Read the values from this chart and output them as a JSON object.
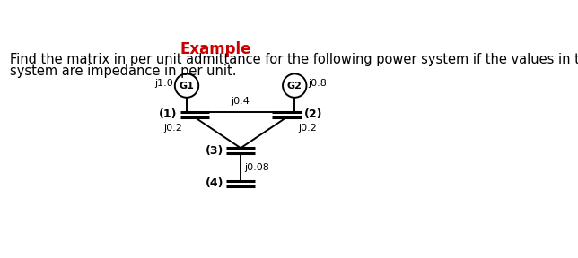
{
  "title": "Example",
  "title_color": "#cc0000",
  "title_fontsize": 12,
  "body_text_line1": "Find the matrix in per unit admittance for the following power system if the values in the",
  "body_text_line2": "system are impedance in per unit.",
  "body_fontsize": 10.5,
  "bg_color": "#ffffff",
  "diagram": {
    "g1_label": "G1",
    "g2_label": "G2",
    "g1_impedance": "j1.0",
    "g2_impedance": "j0.8",
    "line12_impedance": "j0.4",
    "line13_impedance": "j0.2",
    "line23_impedance": "j0.2",
    "line34_impedance": "j0.08",
    "bus1_label": "(1)",
    "bus2_label": "(2)",
    "bus3_label": "(3)",
    "bus4_label": "(4)"
  }
}
